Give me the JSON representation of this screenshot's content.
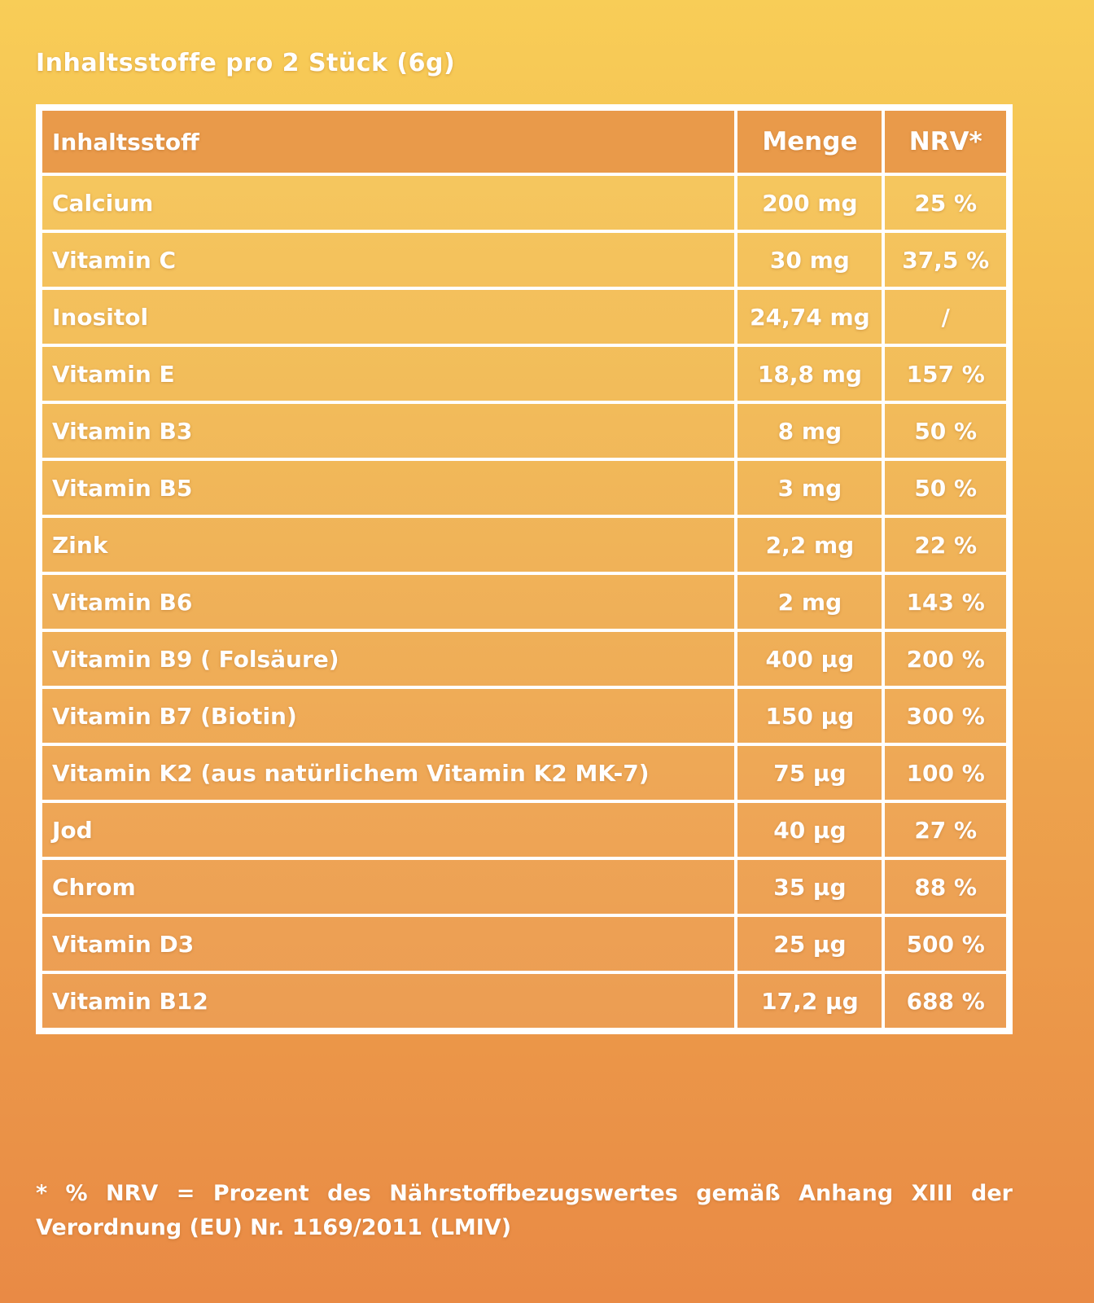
{
  "title": "Inhaltsstoffe pro 2 Stück (6g)",
  "table": {
    "headers": {
      "ingredient": "Inhaltsstoff",
      "amount": "Menge",
      "nrv": "NRV*"
    },
    "rows": [
      {
        "ingredient": "Calcium",
        "amount": "200 mg",
        "nrv": "25 %"
      },
      {
        "ingredient": "Vitamin C",
        "amount": "30 mg",
        "nrv": "37,5 %"
      },
      {
        "ingredient": "Inositol",
        "amount": "24,74 mg",
        "nrv": "/"
      },
      {
        "ingredient": "Vitamin E",
        "amount": "18,8 mg",
        "nrv": "157 %"
      },
      {
        "ingredient": "Vitamin B3",
        "amount": "8 mg",
        "nrv": "50 %"
      },
      {
        "ingredient": "Vitamin B5",
        "amount": "3 mg",
        "nrv": "50 %"
      },
      {
        "ingredient": "Zink",
        "amount": "2,2 mg",
        "nrv": "22 %"
      },
      {
        "ingredient": "Vitamin B6",
        "amount": "2 mg",
        "nrv": "143 %"
      },
      {
        "ingredient": "Vitamin B9 ( Folsäure)",
        "amount": "400 µg",
        "nrv": "200 %"
      },
      {
        "ingredient": "Vitamin B7 (Biotin)",
        "amount": "150 µg",
        "nrv": "300 %"
      },
      {
        "ingredient": "Vitamin K2 (aus natürlichem Vitamin K2 MK-7)",
        "amount": "75 µg",
        "nrv": "100 %"
      },
      {
        "ingredient": "Jod",
        "amount": "40 µg",
        "nrv": "27 %"
      },
      {
        "ingredient": "Chrom",
        "amount": "35 µg",
        "nrv": "88 %"
      },
      {
        "ingredient": "Vitamin D3",
        "amount": "25 µg",
        "nrv": "500 %"
      },
      {
        "ingredient": "Vitamin B12",
        "amount": "17,2 µg",
        "nrv": "688 %"
      }
    ]
  },
  "footnote": "* % NRV = Prozent des Nährstoffbezugswertes gemäß Anhang XIII der Verordnung (EU) Nr. 1169/2011 (LMIV)",
  "colors": {
    "background_top": "#f8cd57",
    "background_bottom": "#e98a45",
    "header_fill": "#e99a4a",
    "grid_lines": "#ffffff",
    "text": "#ffffff"
  }
}
